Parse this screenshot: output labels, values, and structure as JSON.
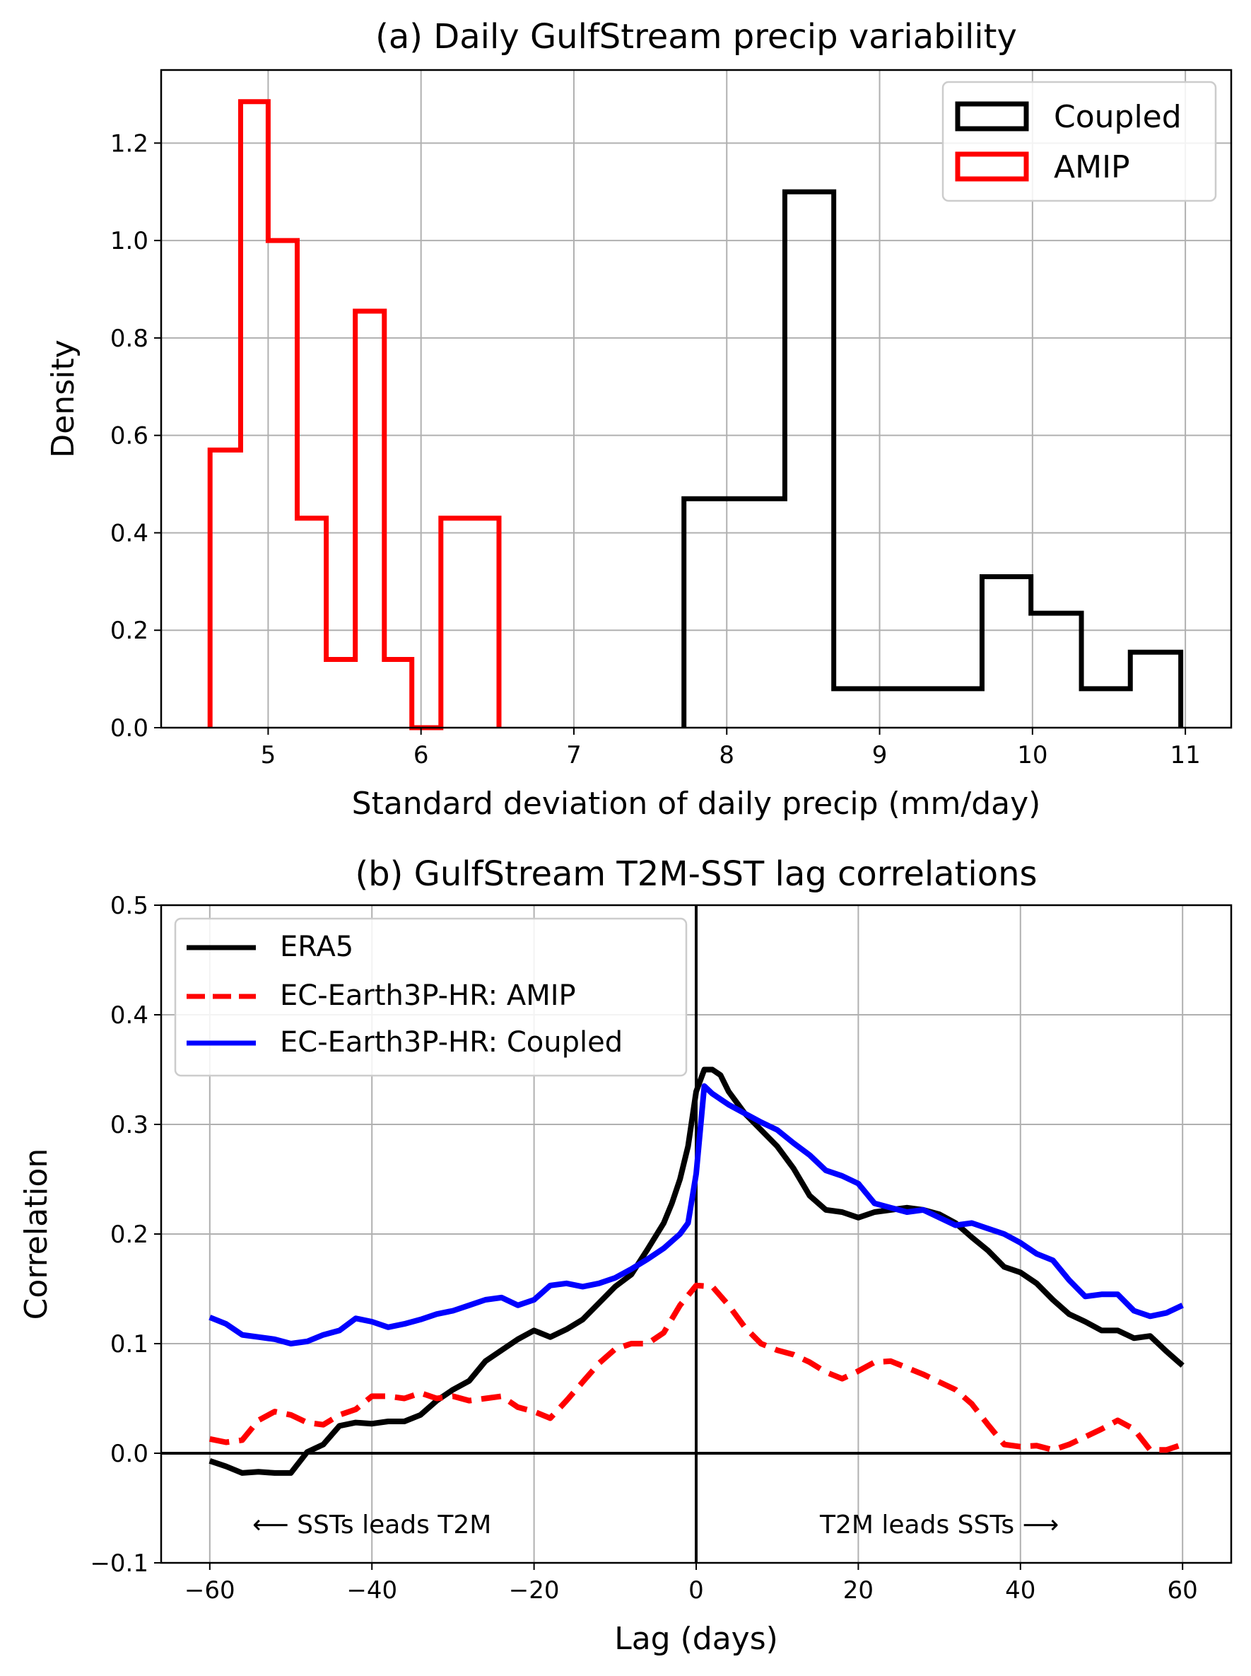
{
  "chart_data": [
    {
      "type": "histogram",
      "title": "(a) Daily GulfStream precip variability",
      "xlabel": "Standard deviation of daily precip (mm/day)",
      "ylabel": "Density",
      "xlim": [
        4.3,
        11.3
      ],
      "ylim": [
        0,
        1.35
      ],
      "xticks": [
        5,
        6,
        7,
        8,
        9,
        10,
        11
      ],
      "yticks": [
        0.0,
        0.2,
        0.4,
        0.6,
        0.8,
        1.0,
        1.2
      ],
      "xtick_labels": [
        "5",
        "6",
        "7",
        "8",
        "9",
        "10",
        "11"
      ],
      "ytick_labels": [
        "0.0",
        "0.2",
        "0.4",
        "0.6",
        "0.8",
        "1.0",
        "1.2"
      ],
      "grid": true,
      "legend_position": "top-right",
      "series": [
        {
          "name": "Coupled",
          "color": "#000000",
          "bin_edges": [
            7.72,
            8.38,
            8.7,
            9.02,
            9.34,
            9.67,
            9.99,
            10.32,
            10.64,
            10.97
          ],
          "values": [
            0.47,
            1.1,
            0.08,
            0.08,
            0.08,
            0.31,
            0.235,
            0.08,
            0.155
          ]
        },
        {
          "name": "AMIP",
          "color": "#ff0000",
          "bin_edges": [
            4.62,
            4.82,
            5.0,
            5.19,
            5.38,
            5.57,
            5.76,
            5.94,
            6.13,
            6.32,
            6.51
          ],
          "values": [
            0.57,
            1.285,
            1.0,
            0.43,
            0.14,
            0.855,
            0.14,
            0.0,
            0.43,
            0.43
          ]
        }
      ]
    },
    {
      "type": "line",
      "title": "(b) GulfStream T2M-SST lag correlations",
      "xlabel": "Lag (days)",
      "ylabel": "Correlation",
      "xlim": [
        -66,
        66
      ],
      "ylim": [
        -0.1,
        0.5
      ],
      "xticks": [
        -60,
        -40,
        -20,
        0,
        20,
        40,
        60
      ],
      "yticks": [
        -0.1,
        0.0,
        0.1,
        0.2,
        0.3,
        0.4,
        0.5
      ],
      "xtick_labels": [
        "−60",
        "−40",
        "−20",
        "0",
        "20",
        "40",
        "60"
      ],
      "ytick_labels": [
        "−0.1",
        "0.0",
        "0.1",
        "0.2",
        "0.3",
        "0.4",
        "0.5"
      ],
      "grid": true,
      "legend_position": "top-left",
      "annotations": [
        {
          "text": "⟵ SSTs leads T2M",
          "x": -40,
          "y": -0.065
        },
        {
          "text": "T2M leads SSTs ⟶",
          "x": 30,
          "y": -0.065
        }
      ],
      "series": [
        {
          "name": "ERA5",
          "color": "#000000",
          "style": "solid",
          "x": [
            -60,
            -58,
            -56,
            -54,
            -52,
            -50,
            -48,
            -46,
            -44,
            -42,
            -40,
            -38,
            -36,
            -34,
            -32,
            -30,
            -28,
            -26,
            -24,
            -22,
            -20,
            -18,
            -16,
            -14,
            -12,
            -10,
            -8,
            -6,
            -4,
            -3,
            -2,
            -1,
            0,
            1,
            2,
            3,
            4,
            6,
            8,
            10,
            12,
            14,
            16,
            18,
            20,
            22,
            24,
            26,
            28,
            30,
            32,
            34,
            36,
            38,
            40,
            42,
            44,
            46,
            48,
            50,
            52,
            54,
            56,
            58,
            60
          ],
          "y": [
            -0.007,
            -0.012,
            -0.018,
            -0.017,
            -0.018,
            -0.018,
            0.001,
            0.008,
            0.025,
            0.028,
            0.027,
            0.029,
            0.029,
            0.035,
            0.048,
            0.058,
            0.066,
            0.084,
            0.094,
            0.104,
            0.112,
            0.106,
            0.113,
            0.122,
            0.137,
            0.152,
            0.163,
            0.186,
            0.21,
            0.228,
            0.25,
            0.28,
            0.33,
            0.35,
            0.35,
            0.345,
            0.33,
            0.31,
            0.295,
            0.28,
            0.26,
            0.235,
            0.222,
            0.22,
            0.215,
            0.22,
            0.222,
            0.224,
            0.222,
            0.218,
            0.21,
            0.197,
            0.185,
            0.17,
            0.165,
            0.155,
            0.14,
            0.127,
            0.12,
            0.112,
            0.112,
            0.105,
            0.107,
            0.093,
            0.08
          ]
        },
        {
          "name": "EC-Earth3P-HR: AMIP",
          "color": "#ff0000",
          "style": "dashed",
          "x": [
            -60,
            -58,
            -56,
            -54,
            -52,
            -50,
            -48,
            -46,
            -44,
            -42,
            -40,
            -38,
            -36,
            -34,
            -32,
            -30,
            -28,
            -26,
            -24,
            -22,
            -20,
            -18,
            -16,
            -14,
            -12,
            -10,
            -8,
            -6,
            -4,
            -2,
            0,
            2,
            4,
            6,
            8,
            10,
            12,
            14,
            16,
            18,
            20,
            22,
            24,
            26,
            28,
            30,
            32,
            34,
            36,
            38,
            40,
            42,
            44,
            46,
            48,
            50,
            52,
            54,
            56,
            58,
            60
          ],
          "y": [
            0.013,
            0.01,
            0.012,
            0.03,
            0.038,
            0.035,
            0.028,
            0.026,
            0.035,
            0.04,
            0.052,
            0.052,
            0.05,
            0.055,
            0.05,
            0.052,
            0.048,
            0.05,
            0.052,
            0.042,
            0.038,
            0.032,
            0.048,
            0.065,
            0.082,
            0.095,
            0.1,
            0.1,
            0.11,
            0.135,
            0.153,
            0.152,
            0.135,
            0.115,
            0.1,
            0.094,
            0.09,
            0.083,
            0.074,
            0.068,
            0.075,
            0.083,
            0.084,
            0.078,
            0.072,
            0.065,
            0.058,
            0.045,
            0.026,
            0.008,
            0.006,
            0.007,
            0.003,
            0.008,
            0.015,
            0.022,
            0.03,
            0.022,
            0.003,
            0.003,
            0.008
          ]
        },
        {
          "name": "EC-Earth3P-HR: Coupled",
          "color": "#0000ff",
          "style": "solid",
          "x": [
            -60,
            -58,
            -56,
            -54,
            -52,
            -50,
            -48,
            -46,
            -44,
            -42,
            -40,
            -38,
            -36,
            -34,
            -32,
            -30,
            -28,
            -26,
            -24,
            -22,
            -20,
            -18,
            -16,
            -14,
            -12,
            -10,
            -8,
            -6,
            -4,
            -2,
            -1,
            0,
            1,
            2,
            4,
            6,
            8,
            10,
            12,
            14,
            16,
            18,
            20,
            22,
            24,
            26,
            28,
            30,
            32,
            34,
            36,
            38,
            40,
            42,
            44,
            46,
            48,
            50,
            52,
            54,
            56,
            58,
            60
          ],
          "y": [
            0.124,
            0.118,
            0.108,
            0.106,
            0.104,
            0.1,
            0.102,
            0.108,
            0.112,
            0.123,
            0.12,
            0.115,
            0.118,
            0.122,
            0.127,
            0.13,
            0.135,
            0.14,
            0.142,
            0.135,
            0.14,
            0.153,
            0.155,
            0.152,
            0.155,
            0.16,
            0.168,
            0.177,
            0.187,
            0.2,
            0.21,
            0.255,
            0.335,
            0.328,
            0.318,
            0.31,
            0.302,
            0.295,
            0.283,
            0.272,
            0.258,
            0.253,
            0.246,
            0.228,
            0.224,
            0.22,
            0.222,
            0.215,
            0.208,
            0.21,
            0.205,
            0.2,
            0.192,
            0.182,
            0.176,
            0.158,
            0.143,
            0.145,
            0.145,
            0.13,
            0.125,
            0.128,
            0.135
          ]
        }
      ]
    }
  ]
}
